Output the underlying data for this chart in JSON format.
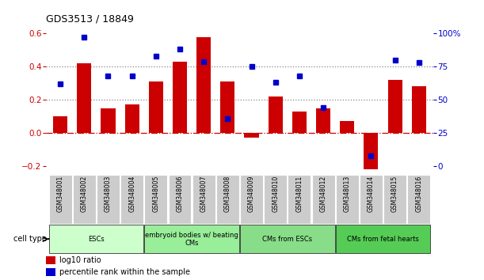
{
  "title": "GDS3513 / 18849",
  "samples": [
    "GSM348001",
    "GSM348002",
    "GSM348003",
    "GSM348004",
    "GSM348005",
    "GSM348006",
    "GSM348007",
    "GSM348008",
    "GSM348009",
    "GSM348010",
    "GSM348011",
    "GSM348012",
    "GSM348013",
    "GSM348014",
    "GSM348015",
    "GSM348016"
  ],
  "log10_ratio": [
    0.1,
    0.42,
    0.15,
    0.17,
    0.31,
    0.43,
    0.58,
    0.31,
    -0.03,
    0.22,
    0.13,
    0.15,
    0.07,
    -0.22,
    0.32,
    0.28
  ],
  "percentile_rank_pct": [
    62,
    97,
    68,
    68,
    83,
    88,
    79,
    36,
    75,
    63,
    68,
    44,
    null,
    8,
    80,
    78
  ],
  "bar_color": "#cc0000",
  "dot_color": "#0000cc",
  "left_ylim": [
    -0.25,
    0.65
  ],
  "right_ylim": [
    0,
    108.33
  ],
  "left_yticks": [
    -0.2,
    0.0,
    0.2,
    0.4,
    0.6
  ],
  "right_yticks": [
    0,
    25,
    50,
    75,
    100
  ],
  "right_yticklabels": [
    "0",
    "25",
    "50",
    "75",
    "100%"
  ],
  "hlines": [
    0.2,
    0.4
  ],
  "cell_type_groups": [
    {
      "label": "ESCs",
      "start": 0,
      "end": 3,
      "color": "#ccffcc"
    },
    {
      "label": "embryoid bodies w/ beating\nCMs",
      "start": 4,
      "end": 7,
      "color": "#99ee99"
    },
    {
      "label": "CMs from ESCs",
      "start": 8,
      "end": 11,
      "color": "#88dd88"
    },
    {
      "label": "CMs from fetal hearts",
      "start": 12,
      "end": 15,
      "color": "#55cc55"
    }
  ],
  "cell_type_label": "cell type",
  "legend_items": [
    {
      "label": "log10 ratio",
      "color": "#cc0000"
    },
    {
      "label": "percentile rank within the sample",
      "color": "#0000cc"
    }
  ],
  "bg_color": "#ffffff",
  "left_tick_color": "#cc0000",
  "right_tick_color": "#0000cc",
  "sample_bg_color": "#cccccc"
}
